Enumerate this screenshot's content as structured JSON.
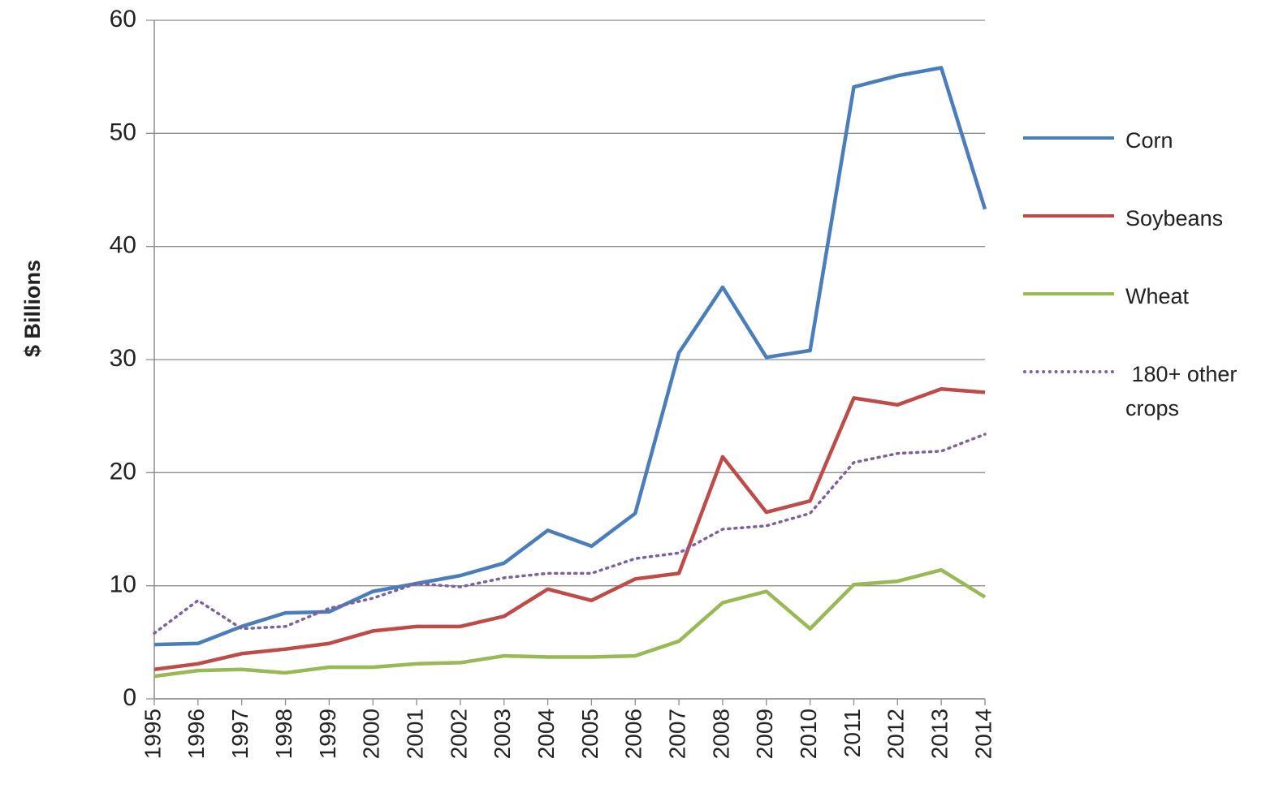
{
  "chart_data": {
    "type": "line",
    "y_label": "$ Billions",
    "categories": [
      "1995",
      "1996",
      "1997",
      "1998",
      "1999",
      "2000",
      "2001",
      "2002",
      "2003",
      "2004",
      "2005",
      "2006",
      "2007",
      "2008",
      "2009",
      "2010",
      "2011",
      "2012",
      "2013",
      "2014"
    ],
    "series": [
      {
        "name": "Corn",
        "color": "#4a7ebb",
        "values": [
          4.8,
          4.9,
          6.4,
          7.6,
          7.7,
          9.5,
          10.2,
          10.9,
          12.0,
          14.9,
          13.5,
          16.4,
          30.6,
          36.4,
          30.2,
          30.8,
          54.1,
          55.1,
          55.8,
          43.3
        ]
      },
      {
        "name": "Soybeans",
        "color": "#be4b48",
        "values": [
          2.6,
          3.1,
          4.0,
          4.4,
          4.9,
          6.0,
          6.4,
          6.4,
          7.3,
          9.7,
          8.7,
          10.6,
          11.1,
          21.4,
          16.5,
          17.5,
          26.6,
          26.0,
          27.4,
          27.1
        ]
      },
      {
        "name": "Wheat",
        "color": "#98b954",
        "values": [
          2.0,
          2.5,
          2.6,
          2.3,
          2.8,
          2.8,
          3.1,
          3.2,
          3.8,
          3.7,
          3.7,
          3.8,
          5.1,
          8.5,
          9.5,
          6.2,
          10.1,
          10.4,
          11.4,
          9.0
        ]
      },
      {
        "name": " 180+ other crops",
        "color": "#7d60a0",
        "dash": true,
        "values": [
          5.8,
          8.7,
          6.2,
          6.4,
          8.0,
          8.9,
          10.2,
          9.9,
          10.7,
          11.1,
          11.1,
          12.4,
          12.9,
          15.0,
          15.3,
          16.4,
          20.9,
          21.7,
          21.9,
          23.4
        ]
      }
    ],
    "ylim": [
      0,
      60
    ],
    "yticks": [
      0,
      10,
      20,
      30,
      40,
      50,
      60
    ],
    "grid": true,
    "legend": "right"
  }
}
